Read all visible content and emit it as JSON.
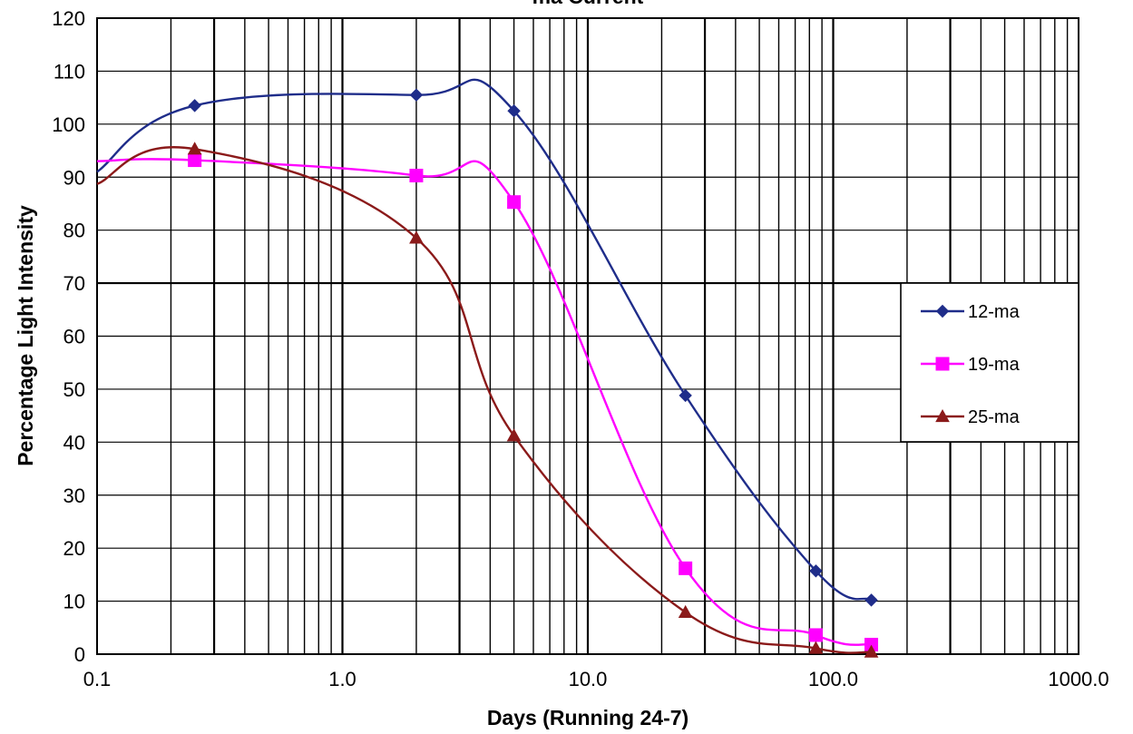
{
  "chart_data": {
    "type": "line",
    "title": "ma Current",
    "xlabel": "Days (Running 24-7)",
    "ylabel": "Percentage Light Intensity",
    "x_scale": "log",
    "xlim": [
      0.1,
      1000
    ],
    "ylim": [
      0,
      120
    ],
    "x_ticks": [
      "0.1",
      "1.0",
      "10.0",
      "100.0",
      "1000.0"
    ],
    "y_ticks": [
      "0",
      "10",
      "20",
      "30",
      "40",
      "50",
      "60",
      "70",
      "80",
      "90",
      "100",
      "110",
      "120"
    ],
    "grid": true,
    "legend_position": "right",
    "series": [
      {
        "name": "12-ma",
        "color": "#1f2d8a",
        "marker": "diamond",
        "x": [
          0.1,
          0.25,
          2,
          5,
          25,
          85,
          143
        ],
        "y": [
          91,
          103.5,
          105.5,
          102.5,
          48.8,
          15.7,
          10.2
        ]
      },
      {
        "name": "19-ma",
        "color": "#ff00ff",
        "marker": "square",
        "x": [
          0.1,
          0.25,
          2,
          5,
          25,
          85,
          143
        ],
        "y": [
          93,
          93.2,
          90.3,
          85.3,
          16.2,
          3.6,
          1.8
        ]
      },
      {
        "name": "25-ma",
        "color": "#8b1a1a",
        "marker": "triangle",
        "x": [
          0.1,
          0.25,
          2,
          5,
          25,
          85,
          143
        ],
        "y": [
          88.7,
          95.3,
          78.5,
          41.2,
          7.9,
          1.1,
          0.4
        ]
      }
    ]
  }
}
